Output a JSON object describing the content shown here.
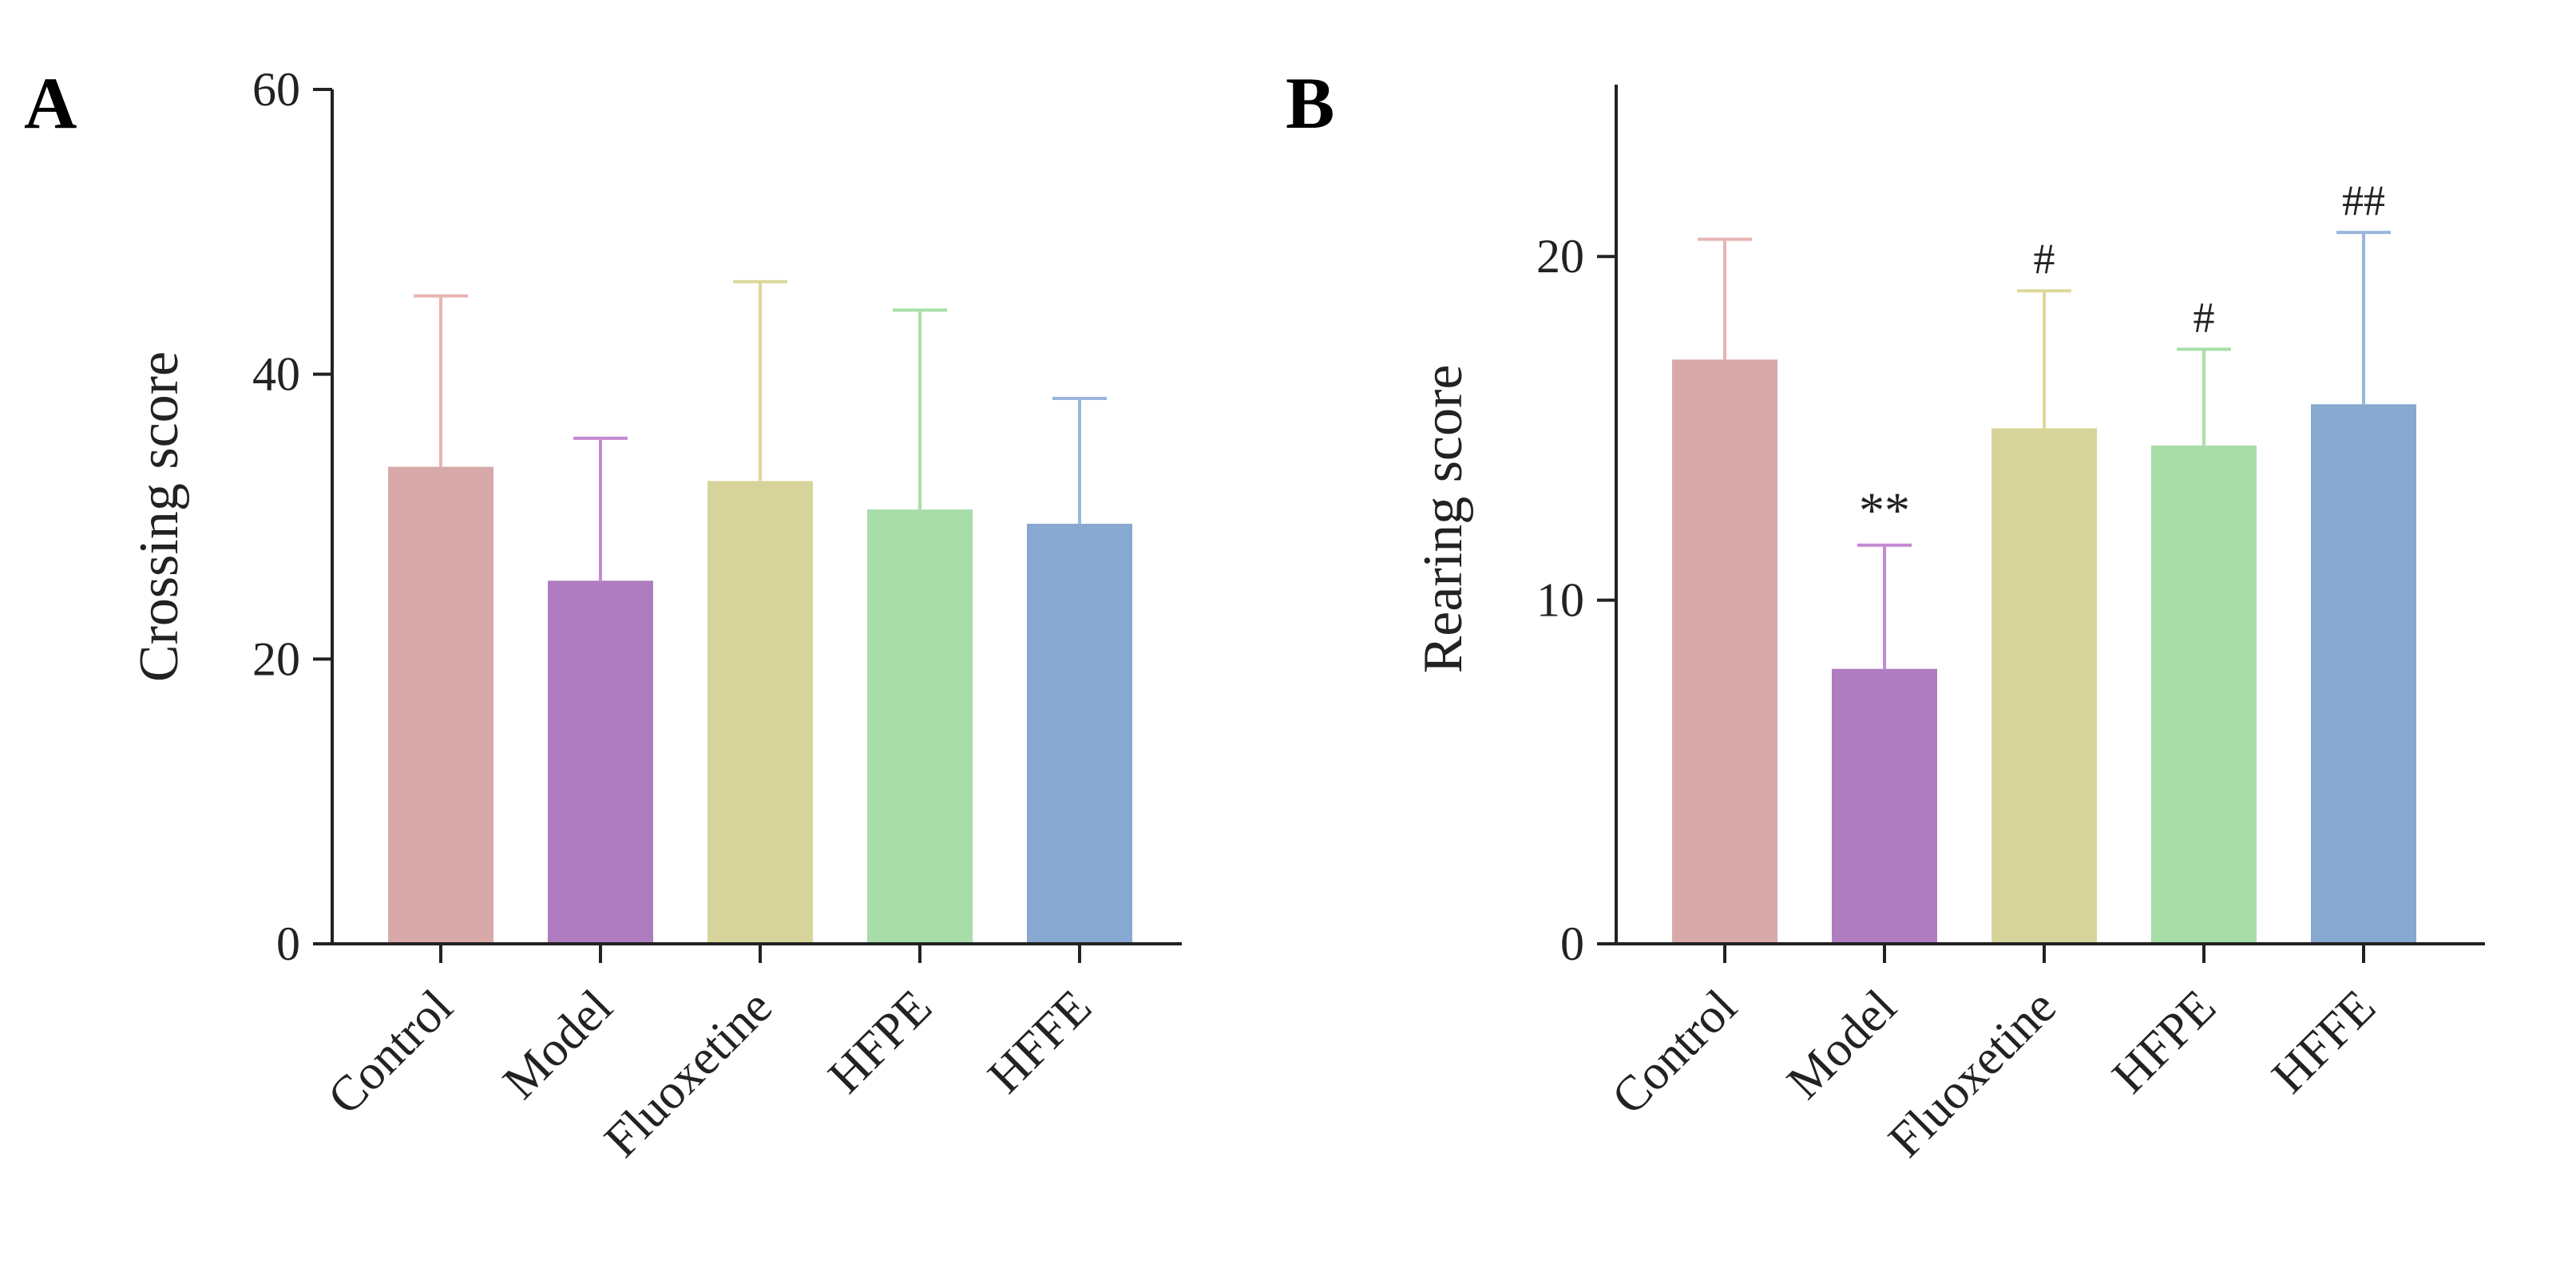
{
  "chart_data": [
    {
      "type": "bar",
      "panel": "A",
      "categories": [
        "Control",
        "Model",
        "Fluoxetine",
        "HFPE",
        "HFFE"
      ],
      "values": [
        33.5,
        25.5,
        32.5,
        30.5,
        29.5
      ],
      "errors": [
        12,
        10,
        14,
        14,
        8.8
      ],
      "annotations": [
        "",
        "",
        "",
        "",
        ""
      ],
      "colors": [
        "#d8a9a9",
        "#b07cc0",
        "#d6d49a",
        "#a8dca8",
        "#87a8d0"
      ],
      "error_colors": [
        "#e8b4b4",
        "#c48ad2",
        "#dcd99a",
        "#a9dfa9",
        "#9ab6dc"
      ],
      "title": "",
      "xlabel": "",
      "ylabel": "Crossing score",
      "ylim": [
        0,
        60
      ],
      "yticks": [
        0,
        20,
        40,
        60
      ]
    },
    {
      "type": "bar",
      "panel": "B",
      "categories": [
        "Control",
        "Model",
        "Fluoxetine",
        "HFPE",
        "HFFE"
      ],
      "values": [
        17,
        8,
        15,
        14.5,
        15.7
      ],
      "errors": [
        3.5,
        3.6,
        4,
        2.8,
        5
      ],
      "annotations": [
        "",
        "**",
        "#",
        "#",
        "##"
      ],
      "colors": [
        "#d8a9a9",
        "#b07cc0",
        "#d6d49a",
        "#a8dca8",
        "#87a8d0"
      ],
      "error_colors": [
        "#e8b4b4",
        "#c48ad2",
        "#dcd99a",
        "#a9dfa9",
        "#9ab6dc"
      ],
      "title": "",
      "xlabel": "",
      "ylabel": "Rearing score",
      "ylim": [
        0,
        25
      ],
      "yticks": [
        0,
        10,
        20
      ]
    }
  ]
}
